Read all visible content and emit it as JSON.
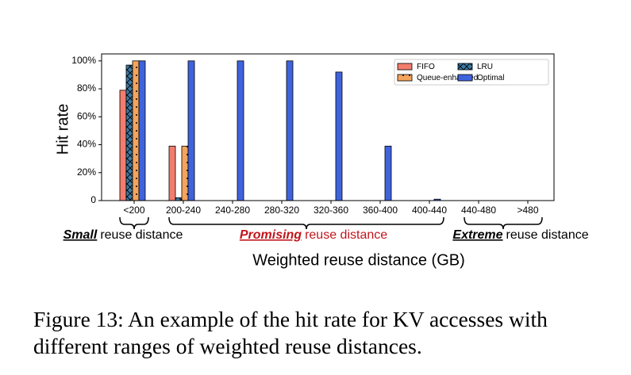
{
  "chart_data": {
    "type": "bar",
    "y_label": "Hit rate",
    "x_label": "Weighted reuse distance (GB)",
    "categories": [
      "<200",
      "200-240",
      "240-280",
      "280-320",
      "320-360",
      "360-400",
      "400-440",
      "440-480",
      ">480"
    ],
    "series": [
      {
        "name": "FIFO",
        "color": "#f27d6e",
        "hatch": "none",
        "values": [
          79,
          39,
          0,
          0,
          0,
          0,
          0,
          0,
          0
        ]
      },
      {
        "name": "LRU",
        "color": "#3b7ba8",
        "hatch": "x",
        "values": [
          97,
          2,
          0,
          0,
          0,
          0,
          0,
          0,
          0
        ]
      },
      {
        "name": "Queue-enhanced",
        "color": "#f5a45c",
        "hatch": "dots",
        "values": [
          100,
          39,
          0,
          0,
          0,
          0,
          0,
          0,
          0
        ]
      },
      {
        "name": "Optimal",
        "color": "#3f63dd",
        "hatch": "none",
        "values": [
          100,
          100,
          100,
          100,
          92,
          39,
          1,
          0,
          0
        ]
      }
    ],
    "ylim": [
      0,
      105
    ],
    "yticks": [
      {
        "value": 0,
        "label": "0"
      },
      {
        "value": 20,
        "label": "20%"
      },
      {
        "value": 40,
        "label": "40%"
      },
      {
        "value": 60,
        "label": "60%"
      },
      {
        "value": 80,
        "label": "80%"
      },
      {
        "value": 100,
        "label": "100%"
      }
    ],
    "legend": "upper right",
    "annotations": [
      {
        "emphasis": "Small",
        "text": "reuse distance",
        "color": "#000000"
      },
      {
        "emphasis": "Promising",
        "text": "reuse distance",
        "color": "#c0161b"
      },
      {
        "emphasis": "Extreme",
        "text": "reuse distance",
        "color": "#000000"
      }
    ]
  },
  "caption": "Figure 13: An example of the hit rate for KV accesses with different ranges of weighted reuse distances."
}
